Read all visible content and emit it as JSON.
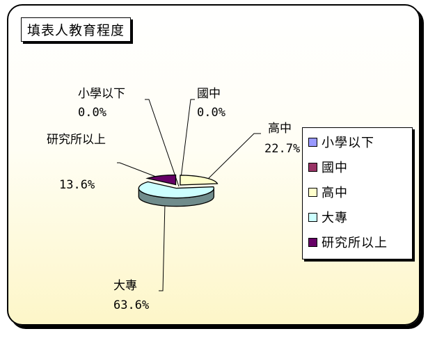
{
  "title": "填表人教育程度",
  "chart_data": {
    "type": "pie",
    "style": "3d-exploded",
    "categories": [
      "小學以下",
      "國中",
      "高中",
      "大專",
      "研究所以上"
    ],
    "values": [
      0.0,
      0.0,
      22.7,
      63.6,
      13.6
    ],
    "value_labels": [
      "0.0%",
      "0.0%",
      "22.7%",
      "63.6%",
      "13.6%"
    ],
    "colors": [
      "#9999ff",
      "#993366",
      "#ffffcc",
      "#ccffff",
      "#660066"
    ],
    "legend_position": "right"
  }
}
